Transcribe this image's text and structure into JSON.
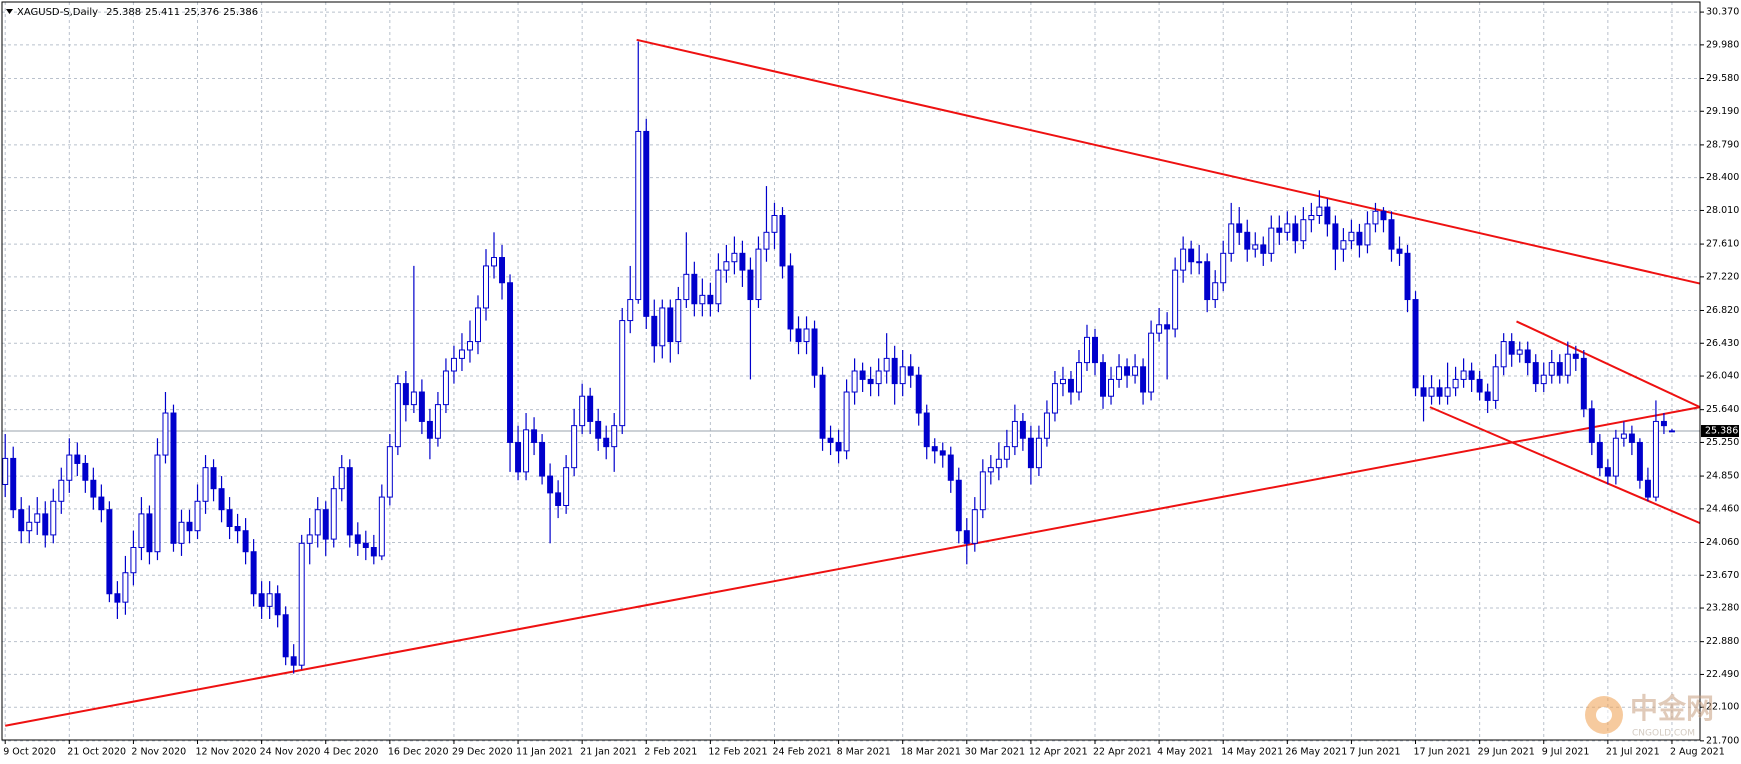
{
  "chart_data": {
    "type": "candlestick",
    "title": "XAGUSD-S,Daily",
    "watermark": "中金网",
    "watermark_sub": "CNGOLD.COM",
    "color": "#0000cc",
    "trendline_color": "#ee1111",
    "grid": true,
    "xlim": [
      -0.4,
      211.5
    ],
    "ylim": [
      21.71,
      30.49
    ],
    "xticks": [
      {
        "value": 0,
        "label": "9 Oct 2020"
      },
      {
        "value": 8,
        "label": "21 Oct 2020"
      },
      {
        "value": 16,
        "label": "2 Nov 2020"
      },
      {
        "value": 24,
        "label": "12 Nov 2020"
      },
      {
        "value": 32,
        "label": "24 Nov 2020"
      },
      {
        "value": 40,
        "label": "4 Dec 2020"
      },
      {
        "value": 48,
        "label": "16 Dec 2020"
      },
      {
        "value": 56,
        "label": "29 Dec 2020"
      },
      {
        "value": 64,
        "label": "11 Jan 2021"
      },
      {
        "value": 72,
        "label": "21 Jan 2021"
      },
      {
        "value": 80,
        "label": "2 Feb 2021"
      },
      {
        "value": 88,
        "label": "12 Feb 2021"
      },
      {
        "value": 96,
        "label": "24 Feb 2021"
      },
      {
        "value": 104,
        "label": "8 Mar 2021"
      },
      {
        "value": 112,
        "label": "18 Mar 2021"
      },
      {
        "value": 120,
        "label": "30 Mar 2021"
      },
      {
        "value": 128,
        "label": "12 Apr 2021"
      },
      {
        "value": 136,
        "label": "22 Apr 2021"
      },
      {
        "value": 144,
        "label": "4 May 2021"
      },
      {
        "value": 152,
        "label": "14 May 2021"
      },
      {
        "value": 160,
        "label": "26 May 2021"
      },
      {
        "value": 168,
        "label": "7 Jun 2021"
      },
      {
        "value": 176,
        "label": "17 Jun 2021"
      },
      {
        "value": 184,
        "label": "29 Jun 2021"
      },
      {
        "value": 192,
        "label": "9 Jul 2021"
      },
      {
        "value": 200,
        "label": "21 Jul 2021"
      },
      {
        "value": 208,
        "label": "2 Aug 2021"
      }
    ],
    "yticks": [
      {
        "value": 30.37,
        "label": "30.370"
      },
      {
        "value": 29.98,
        "label": "29.980"
      },
      {
        "value": 29.58,
        "label": "29.580"
      },
      {
        "value": 29.19,
        "label": "29.190"
      },
      {
        "value": 28.79,
        "label": "28.790"
      },
      {
        "value": 28.4,
        "label": "28.400"
      },
      {
        "value": 28.01,
        "label": "28.010"
      },
      {
        "value": 27.61,
        "label": "27.610"
      },
      {
        "value": 27.22,
        "label": "27.220"
      },
      {
        "value": 26.82,
        "label": "26.820"
      },
      {
        "value": 26.43,
        "label": "26.430"
      },
      {
        "value": 26.04,
        "label": "26.040"
      },
      {
        "value": 25.64,
        "label": "25.640"
      },
      {
        "value": 25.25,
        "label": "25.250"
      },
      {
        "value": 24.85,
        "label": "24.850"
      },
      {
        "value": 24.46,
        "label": "24.460"
      },
      {
        "value": 24.06,
        "label": "24.060"
      },
      {
        "value": 23.67,
        "label": "23.670"
      },
      {
        "value": 23.28,
        "label": "23.280"
      },
      {
        "value": 22.88,
        "label": "22.880"
      },
      {
        "value": 22.49,
        "label": "22.490"
      },
      {
        "value": 22.1,
        "label": "22.100"
      },
      {
        "value": 21.7,
        "label": "21.700"
      }
    ],
    "trendlines": [
      [
        [
          0,
          21.88
        ],
        [
          211.5,
          25.67
        ]
      ],
      [
        [
          78.8,
          30.04
        ],
        [
          211.5,
          27.14
        ]
      ],
      [
        [
          188.6,
          26.69
        ],
        [
          211.5,
          25.67
        ]
      ],
      [
        [
          177.8,
          25.67
        ],
        [
          211.5,
          24.29
        ]
      ]
    ],
    "candles": [
      [
        24.75,
        25.35,
        24.6,
        25.06
      ],
      [
        25.06,
        25.2,
        24.35,
        24.45
      ],
      [
        24.45,
        24.6,
        24.05,
        24.2
      ],
      [
        24.2,
        24.5,
        24.05,
        24.3
      ],
      [
        24.3,
        24.6,
        24.15,
        24.4
      ],
      [
        24.4,
        24.55,
        24.0,
        24.15
      ],
      [
        24.15,
        24.7,
        24.05,
        24.55
      ],
      [
        24.55,
        24.95,
        24.4,
        24.8
      ],
      [
        24.8,
        25.3,
        24.65,
        25.1
      ],
      [
        25.1,
        25.25,
        24.85,
        25.0
      ],
      [
        25.0,
        25.1,
        24.65,
        24.8
      ],
      [
        24.8,
        24.95,
        24.45,
        24.6
      ],
      [
        24.6,
        24.75,
        24.3,
        24.45
      ],
      [
        24.45,
        24.55,
        23.35,
        23.45
      ],
      [
        23.45,
        23.6,
        23.15,
        23.35
      ],
      [
        23.35,
        23.9,
        23.2,
        23.7
      ],
      [
        23.7,
        24.2,
        23.55,
        24.0
      ],
      [
        24.0,
        24.6,
        23.85,
        24.4
      ],
      [
        24.4,
        24.5,
        23.8,
        23.95
      ],
      [
        23.95,
        25.3,
        23.85,
        25.1
      ],
      [
        25.1,
        25.85,
        25.0,
        25.6
      ],
      [
        25.6,
        25.7,
        23.95,
        24.05
      ],
      [
        24.05,
        24.45,
        23.9,
        24.3
      ],
      [
        24.3,
        24.45,
        24.05,
        24.2
      ],
      [
        24.2,
        24.75,
        24.1,
        24.55
      ],
      [
        24.55,
        25.1,
        24.4,
        24.95
      ],
      [
        24.95,
        25.05,
        24.55,
        24.7
      ],
      [
        24.7,
        24.85,
        24.3,
        24.45
      ],
      [
        24.45,
        24.6,
        24.1,
        24.25
      ],
      [
        24.25,
        24.4,
        24.05,
        24.2
      ],
      [
        24.2,
        24.35,
        23.8,
        23.95
      ],
      [
        23.95,
        24.1,
        23.3,
        23.45
      ],
      [
        23.45,
        23.6,
        23.15,
        23.3
      ],
      [
        23.3,
        23.6,
        23.15,
        23.45
      ],
      [
        23.45,
        23.55,
        23.05,
        23.2
      ],
      [
        23.2,
        23.3,
        22.6,
        22.7
      ],
      [
        22.7,
        22.85,
        22.5,
        22.6
      ],
      [
        22.6,
        24.15,
        22.55,
        24.05
      ],
      [
        24.05,
        24.35,
        23.8,
        24.15
      ],
      [
        24.15,
        24.6,
        24.0,
        24.45
      ],
      [
        24.45,
        24.55,
        23.9,
        24.1
      ],
      [
        24.1,
        24.85,
        24.0,
        24.7
      ],
      [
        24.7,
        25.1,
        24.55,
        24.95
      ],
      [
        24.95,
        25.05,
        24.0,
        24.15
      ],
      [
        24.15,
        24.3,
        23.9,
        24.05
      ],
      [
        24.05,
        24.2,
        23.85,
        24.0
      ],
      [
        24.0,
        24.15,
        23.8,
        23.9
      ],
      [
        23.9,
        24.75,
        23.85,
        24.6
      ],
      [
        24.6,
        25.35,
        24.5,
        25.2
      ],
      [
        25.2,
        26.05,
        25.1,
        25.95
      ],
      [
        25.95,
        26.1,
        25.5,
        25.7
      ],
      [
        25.7,
        27.35,
        25.6,
        25.85
      ],
      [
        25.85,
        26.0,
        25.35,
        25.5
      ],
      [
        25.5,
        25.65,
        25.05,
        25.3
      ],
      [
        25.3,
        25.85,
        25.2,
        25.7
      ],
      [
        25.7,
        26.25,
        25.6,
        26.1
      ],
      [
        26.1,
        26.4,
        25.95,
        26.25
      ],
      [
        26.25,
        26.55,
        26.1,
        26.35
      ],
      [
        26.35,
        26.7,
        26.2,
        26.45
      ],
      [
        26.45,
        27.0,
        26.3,
        26.85
      ],
      [
        26.85,
        27.55,
        26.7,
        27.35
      ],
      [
        27.35,
        27.75,
        27.2,
        27.45
      ],
      [
        27.45,
        27.6,
        26.95,
        27.15
      ],
      [
        27.15,
        27.25,
        24.9,
        25.25
      ],
      [
        25.25,
        25.45,
        24.8,
        24.9
      ],
      [
        24.9,
        25.6,
        24.8,
        25.4
      ],
      [
        25.4,
        25.55,
        25.1,
        25.25
      ],
      [
        25.25,
        25.35,
        24.75,
        24.85
      ],
      [
        24.85,
        25.0,
        24.05,
        24.65
      ],
      [
        24.65,
        24.8,
        24.35,
        24.5
      ],
      [
        24.5,
        25.1,
        24.4,
        24.95
      ],
      [
        24.95,
        25.65,
        24.85,
        25.45
      ],
      [
        25.45,
        25.95,
        25.35,
        25.8
      ],
      [
        25.8,
        25.9,
        25.35,
        25.5
      ],
      [
        25.5,
        25.65,
        25.15,
        25.3
      ],
      [
        25.3,
        25.45,
        25.05,
        25.2
      ],
      [
        25.2,
        25.6,
        24.9,
        25.45
      ],
      [
        25.45,
        26.85,
        25.35,
        26.7
      ],
      [
        26.7,
        27.35,
        26.55,
        26.95
      ],
      [
        26.95,
        30.02,
        26.9,
        28.95
      ],
      [
        28.95,
        29.1,
        26.6,
        26.75
      ],
      [
        26.75,
        26.95,
        26.2,
        26.4
      ],
      [
        26.4,
        26.95,
        26.25,
        26.85
      ],
      [
        26.85,
        26.95,
        26.2,
        26.45
      ],
      [
        26.45,
        27.1,
        26.3,
        26.95
      ],
      [
        26.95,
        27.75,
        26.85,
        27.25
      ],
      [
        27.25,
        27.4,
        26.75,
        26.9
      ],
      [
        26.9,
        27.2,
        26.75,
        27.0
      ],
      [
        27.0,
        27.15,
        26.75,
        26.9
      ],
      [
        26.9,
        27.5,
        26.8,
        27.3
      ],
      [
        27.3,
        27.6,
        27.15,
        27.4
      ],
      [
        27.4,
        27.7,
        27.25,
        27.5
      ],
      [
        27.5,
        27.65,
        27.1,
        27.3
      ],
      [
        27.3,
        27.45,
        26.0,
        26.95
      ],
      [
        26.95,
        27.7,
        26.85,
        27.55
      ],
      [
        27.55,
        28.3,
        27.4,
        27.75
      ],
      [
        27.75,
        28.1,
        27.55,
        27.95
      ],
      [
        27.95,
        28.05,
        27.2,
        27.35
      ],
      [
        27.35,
        27.5,
        26.45,
        26.6
      ],
      [
        26.6,
        26.75,
        26.3,
        26.45
      ],
      [
        26.45,
        26.75,
        26.3,
        26.6
      ],
      [
        26.6,
        26.7,
        25.9,
        26.05
      ],
      [
        26.05,
        26.15,
        25.15,
        25.3
      ],
      [
        25.3,
        25.45,
        25.1,
        25.25
      ],
      [
        25.25,
        25.4,
        25.0,
        25.15
      ],
      [
        25.15,
        26.0,
        25.05,
        25.85
      ],
      [
        25.85,
        26.25,
        25.7,
        26.1
      ],
      [
        26.1,
        26.2,
        25.85,
        26.0
      ],
      [
        26.0,
        26.15,
        25.8,
        25.95
      ],
      [
        25.95,
        26.25,
        25.8,
        26.1
      ],
      [
        26.1,
        26.55,
        25.95,
        26.25
      ],
      [
        26.25,
        26.4,
        25.7,
        25.95
      ],
      [
        25.95,
        26.35,
        25.8,
        26.15
      ],
      [
        26.15,
        26.3,
        25.9,
        26.05
      ],
      [
        26.05,
        26.15,
        25.45,
        25.6
      ],
      [
        25.6,
        25.7,
        25.05,
        25.2
      ],
      [
        25.2,
        25.3,
        25.0,
        25.15
      ],
      [
        25.15,
        25.25,
        24.95,
        25.1
      ],
      [
        25.1,
        25.2,
        24.65,
        24.8
      ],
      [
        24.8,
        24.95,
        24.05,
        24.2
      ],
      [
        24.2,
        24.35,
        23.8,
        24.05
      ],
      [
        24.05,
        24.6,
        23.95,
        24.45
      ],
      [
        24.45,
        25.05,
        24.35,
        24.9
      ],
      [
        24.9,
        25.1,
        24.75,
        24.95
      ],
      [
        24.95,
        25.25,
        24.8,
        25.05
      ],
      [
        25.05,
        25.4,
        24.95,
        25.2
      ],
      [
        25.2,
        25.7,
        25.1,
        25.5
      ],
      [
        25.5,
        25.6,
        25.15,
        25.3
      ],
      [
        25.3,
        25.45,
        24.75,
        24.95
      ],
      [
        24.95,
        25.45,
        24.85,
        25.3
      ],
      [
        25.3,
        25.75,
        25.2,
        25.6
      ],
      [
        25.6,
        26.1,
        25.5,
        25.95
      ],
      [
        25.95,
        26.15,
        25.8,
        26.0
      ],
      [
        26.0,
        26.1,
        25.7,
        25.85
      ],
      [
        25.85,
        26.35,
        25.75,
        26.2
      ],
      [
        26.2,
        26.65,
        26.1,
        26.5
      ],
      [
        26.5,
        26.6,
        26.05,
        26.2
      ],
      [
        26.2,
        26.3,
        25.65,
        25.8
      ],
      [
        25.8,
        26.15,
        25.7,
        26.0
      ],
      [
        26.0,
        26.3,
        25.9,
        26.15
      ],
      [
        26.15,
        26.25,
        25.9,
        26.05
      ],
      [
        26.05,
        26.3,
        25.95,
        26.15
      ],
      [
        26.15,
        26.25,
        25.7,
        25.85
      ],
      [
        25.85,
        26.7,
        25.75,
        26.55
      ],
      [
        26.55,
        26.85,
        26.45,
        26.65
      ],
      [
        26.65,
        26.8,
        26.0,
        26.6
      ],
      [
        26.6,
        27.45,
        26.5,
        27.3
      ],
      [
        27.3,
        27.7,
        27.15,
        27.55
      ],
      [
        27.55,
        27.65,
        27.25,
        27.4
      ],
      [
        27.4,
        27.6,
        27.25,
        27.4
      ],
      [
        27.4,
        27.5,
        26.8,
        26.95
      ],
      [
        26.95,
        27.3,
        26.85,
        27.15
      ],
      [
        27.15,
        27.65,
        27.05,
        27.5
      ],
      [
        27.5,
        28.1,
        27.4,
        27.85
      ],
      [
        27.85,
        28.05,
        27.6,
        27.75
      ],
      [
        27.75,
        27.9,
        27.4,
        27.55
      ],
      [
        27.55,
        27.75,
        27.45,
        27.6
      ],
      [
        27.6,
        27.7,
        27.35,
        27.5
      ],
      [
        27.5,
        27.95,
        27.4,
        27.8
      ],
      [
        27.8,
        27.95,
        27.6,
        27.75
      ],
      [
        27.75,
        28.0,
        27.65,
        27.85
      ],
      [
        27.85,
        27.95,
        27.5,
        27.65
      ],
      [
        27.65,
        28.05,
        27.55,
        27.9
      ],
      [
        27.9,
        28.1,
        27.75,
        27.95
      ],
      [
        27.95,
        28.25,
        27.85,
        28.05
      ],
      [
        28.05,
        28.15,
        27.7,
        27.85
      ],
      [
        27.85,
        27.95,
        27.3,
        27.55
      ],
      [
        27.55,
        27.8,
        27.4,
        27.65
      ],
      [
        27.65,
        27.9,
        27.55,
        27.75
      ],
      [
        27.75,
        27.85,
        27.45,
        27.6
      ],
      [
        27.6,
        28.0,
        27.5,
        27.85
      ],
      [
        27.85,
        28.1,
        27.75,
        28.0
      ],
      [
        28.0,
        28.05,
        27.75,
        27.9
      ],
      [
        27.9,
        28.0,
        27.4,
        27.55
      ],
      [
        27.55,
        27.7,
        27.35,
        27.5
      ],
      [
        27.5,
        27.6,
        26.8,
        26.95
      ],
      [
        26.95,
        27.05,
        25.8,
        25.9
      ],
      [
        25.9,
        26.05,
        25.5,
        25.8
      ],
      [
        25.8,
        26.05,
        25.7,
        25.9
      ],
      [
        25.9,
        26.0,
        25.7,
        25.8
      ],
      [
        25.8,
        26.2,
        25.7,
        25.9
      ],
      [
        25.9,
        26.15,
        25.8,
        26.0
      ],
      [
        26.0,
        26.25,
        25.9,
        26.1
      ],
      [
        26.1,
        26.2,
        25.85,
        26.0
      ],
      [
        26.0,
        26.1,
        25.75,
        25.85
      ],
      [
        25.85,
        25.95,
        25.6,
        25.75
      ],
      [
        25.75,
        26.3,
        25.65,
        26.15
      ],
      [
        26.15,
        26.55,
        26.05,
        26.45
      ],
      [
        26.45,
        26.55,
        26.15,
        26.3
      ],
      [
        26.3,
        26.45,
        26.2,
        26.35
      ],
      [
        26.35,
        26.45,
        26.05,
        26.2
      ],
      [
        26.2,
        26.3,
        25.85,
        25.95
      ],
      [
        25.95,
        26.2,
        25.85,
        26.05
      ],
      [
        26.05,
        26.35,
        25.95,
        26.2
      ],
      [
        26.2,
        26.3,
        25.95,
        26.05
      ],
      [
        26.05,
        26.45,
        25.95,
        26.3
      ],
      [
        26.3,
        26.4,
        26.1,
        26.25
      ],
      [
        26.25,
        26.35,
        25.55,
        25.65
      ],
      [
        25.65,
        25.75,
        25.1,
        25.25
      ],
      [
        25.25,
        25.35,
        24.85,
        24.95
      ],
      [
        24.95,
        25.05,
        24.75,
        24.85
      ],
      [
        24.85,
        25.4,
        24.75,
        25.3
      ],
      [
        25.3,
        25.5,
        25.2,
        25.35
      ],
      [
        25.35,
        25.45,
        25.1,
        25.25
      ],
      [
        25.25,
        25.3,
        24.7,
        24.8
      ],
      [
        24.8,
        24.95,
        24.55,
        24.6
      ],
      [
        24.6,
        25.75,
        24.55,
        25.5
      ],
      [
        25.5,
        25.6,
        25.35,
        25.45
      ],
      [
        25.388,
        25.411,
        25.376,
        25.386
      ]
    ]
  }
}
